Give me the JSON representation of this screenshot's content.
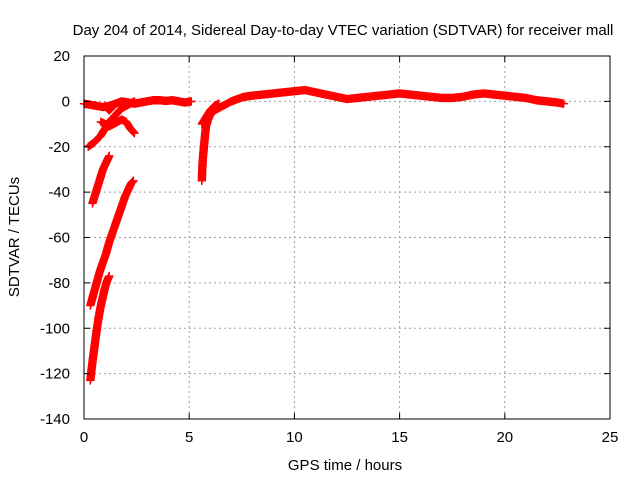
{
  "chart_data": {
    "type": "scatter",
    "title": "Day 204 of 2014, Sidereal Day-to-day VTEC variation (SDTVAR) for receiver mall",
    "xlabel": "GPS time / hours",
    "ylabel": "SDTVAR / TECUs",
    "xlim": [
      0,
      25
    ],
    "ylim": [
      -140,
      20
    ],
    "xticks": [
      0,
      5,
      10,
      15,
      20,
      25
    ],
    "yticks": [
      -140,
      -120,
      -100,
      -80,
      -60,
      -40,
      -20,
      0,
      20
    ],
    "grid": true,
    "marker": "plus",
    "color": "#ff0000",
    "series": [
      {
        "segments": [
          [
            [
              0.0,
              -1.0
            ],
            [
              0.3,
              -1.5
            ],
            [
              0.6,
              -2.0
            ],
            [
              0.9,
              -2.5
            ],
            [
              1.2,
              -2.0
            ],
            [
              1.5,
              -1.0
            ],
            [
              1.8,
              0.0
            ],
            [
              2.1,
              -0.5
            ],
            [
              2.4,
              -1.0
            ],
            [
              2.7,
              -0.5
            ],
            [
              3.0,
              0.0
            ],
            [
              3.3,
              0.5
            ],
            [
              3.6,
              0.5
            ],
            [
              3.9,
              0.2
            ],
            [
              4.2,
              0.5
            ],
            [
              4.5,
              0.0
            ],
            [
              4.8,
              -0.5
            ],
            [
              5.1,
              0.0
            ]
          ],
          [
            [
              0.2,
              -20
            ],
            [
              0.5,
              -18
            ],
            [
              0.8,
              -15
            ],
            [
              1.0,
              -12
            ],
            [
              1.2,
              -9
            ],
            [
              1.4,
              -7
            ],
            [
              1.6,
              -5
            ],
            [
              1.8,
              -3
            ],
            [
              2.0,
              -2
            ],
            [
              2.2,
              -1
            ],
            [
              2.4,
              0
            ]
          ],
          [
            [
              0.8,
              -9
            ],
            [
              1.0,
              -10
            ],
            [
              1.2,
              -11
            ],
            [
              1.4,
              -10
            ],
            [
              1.6,
              -9
            ],
            [
              1.8,
              -8
            ],
            [
              2.0,
              -9
            ],
            [
              2.2,
              -12
            ],
            [
              2.4,
              -14
            ]
          ],
          [
            [
              1.0,
              -2
            ],
            [
              1.1,
              -3
            ],
            [
              1.2,
              -4
            ],
            [
              1.3,
              -3
            ],
            [
              1.4,
              -2
            ]
          ],
          [
            [
              0.4,
              -45
            ],
            [
              0.5,
              -42
            ],
            [
              0.6,
              -39
            ],
            [
              0.7,
              -36
            ],
            [
              0.8,
              -33
            ],
            [
              0.9,
              -30
            ],
            [
              1.0,
              -28
            ],
            [
              1.1,
              -26
            ],
            [
              1.2,
              -24
            ]
          ],
          [
            [
              0.3,
              -90
            ],
            [
              0.45,
              -85
            ],
            [
              0.6,
              -80
            ],
            [
              0.75,
              -75
            ],
            [
              0.9,
              -71
            ],
            [
              1.05,
              -67
            ],
            [
              1.2,
              -62
            ],
            [
              1.35,
              -58
            ],
            [
              1.5,
              -54
            ],
            [
              1.65,
              -50
            ],
            [
              1.8,
              -46
            ],
            [
              1.95,
              -42
            ],
            [
              2.1,
              -39
            ],
            [
              2.25,
              -36
            ],
            [
              2.35,
              -35
            ]
          ],
          [
            [
              0.3,
              -123
            ],
            [
              0.4,
              -115
            ],
            [
              0.5,
              -108
            ],
            [
              0.6,
              -101
            ],
            [
              0.7,
              -95
            ],
            [
              0.8,
              -90
            ],
            [
              0.9,
              -86
            ],
            [
              1.0,
              -82
            ],
            [
              1.1,
              -79
            ],
            [
              1.2,
              -77
            ]
          ],
          [
            [
              5.6,
              -35
            ],
            [
              5.62,
              -30
            ],
            [
              5.65,
              -25
            ],
            [
              5.7,
              -20
            ],
            [
              5.75,
              -15
            ],
            [
              5.8,
              -11
            ],
            [
              5.9,
              -8
            ],
            [
              6.0,
              -6
            ],
            [
              6.2,
              -4
            ],
            [
              6.4,
              -3
            ],
            [
              6.6,
              -2
            ],
            [
              6.8,
              -1
            ],
            [
              7.0,
              0
            ],
            [
              7.3,
              1
            ],
            [
              7.6,
              2
            ],
            [
              8.0,
              2.5
            ],
            [
              8.5,
              3
            ],
            [
              9.0,
              3.5
            ],
            [
              9.5,
              4
            ],
            [
              10.0,
              4.5
            ],
            [
              10.5,
              5
            ],
            [
              11.0,
              4
            ],
            [
              11.5,
              3
            ],
            [
              12.0,
              2
            ],
            [
              12.5,
              1
            ],
            [
              13.0,
              1.5
            ],
            [
              13.5,
              2
            ],
            [
              14.0,
              2.5
            ],
            [
              14.5,
              3
            ],
            [
              15.0,
              3.5
            ],
            [
              15.5,
              3
            ],
            [
              16.0,
              2.5
            ],
            [
              16.5,
              2
            ],
            [
              17.0,
              1.5
            ],
            [
              17.5,
              1.5
            ],
            [
              18.0,
              2
            ],
            [
              18.5,
              3
            ],
            [
              19.0,
              3.5
            ],
            [
              19.5,
              3
            ],
            [
              20.0,
              2.5
            ],
            [
              20.5,
              2
            ],
            [
              21.0,
              1.5
            ],
            [
              21.5,
              0.5
            ],
            [
              22.0,
              0
            ],
            [
              22.5,
              -0.5
            ],
            [
              22.8,
              -1
            ]
          ],
          [
            [
              5.6,
              -10
            ],
            [
              5.8,
              -7
            ],
            [
              6.0,
              -4
            ],
            [
              6.2,
              -2
            ],
            [
              6.4,
              -1
            ]
          ]
        ]
      }
    ]
  }
}
